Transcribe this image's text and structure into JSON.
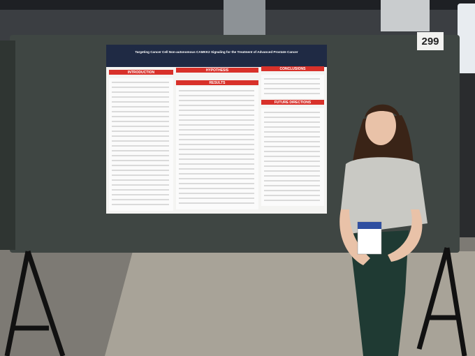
{
  "board_number": "299",
  "poster": {
    "title": "Targeting Cancer Cell Non-autonomous CAMKK2 Signaling for the Treatment of Advanced Prostate Cancer",
    "sections": [
      "INTRODUCTION",
      "HYPOTHESIS",
      "RESULTS",
      "CONCLUSIONS",
      "FUTURE DIRECTIONS"
    ]
  }
}
